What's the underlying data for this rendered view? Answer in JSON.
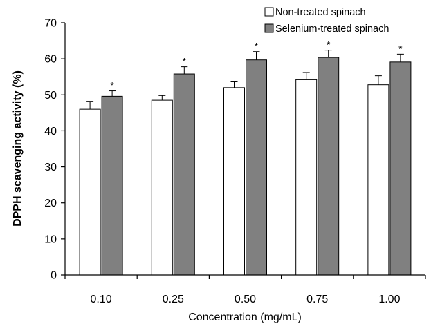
{
  "chart_data": {
    "type": "bar",
    "xlabel": "Concentration (mg/mL)",
    "ylabel": "DPPH scavenging activity (%)",
    "categories": [
      "0.10",
      "0.25",
      "0.50",
      "0.75",
      "1.00"
    ],
    "ylim": [
      0,
      70
    ],
    "yticks": [
      0,
      10,
      20,
      30,
      40,
      50,
      60,
      70
    ],
    "legend_position": "top-right",
    "grid": false,
    "series": [
      {
        "name": "Non-treated spinach",
        "color": "#ffffff",
        "values": [
          46.0,
          48.5,
          52.0,
          54.2,
          52.8
        ],
        "errors": [
          2.2,
          1.3,
          1.6,
          2.0,
          2.5
        ],
        "annotations": [
          "",
          "",
          "",
          "",
          ""
        ]
      },
      {
        "name": "Selenium-treated spinach",
        "color": "#808080",
        "values": [
          49.6,
          55.8,
          59.7,
          60.4,
          59.1
        ],
        "errors": [
          1.5,
          2.0,
          2.3,
          2.0,
          2.2
        ],
        "annotations": [
          "*",
          "*",
          "*",
          "*",
          "*"
        ]
      }
    ]
  }
}
